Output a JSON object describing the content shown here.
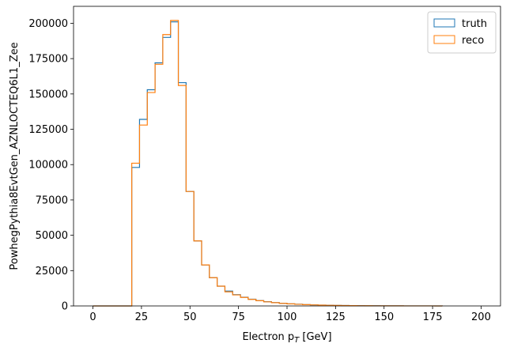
{
  "chart_data": {
    "type": "histogram",
    "xlabel": "Electron p",
    "xlabel_sub": "T",
    "xlabel_unit": " [GeV]",
    "ylabel": "PowhegPythia8EvtGen_AZNLOCTEQ6L1_Zee",
    "xlim": [
      -10,
      210
    ],
    "ylim": [
      0,
      212000
    ],
    "x_ticks": [
      0,
      25,
      50,
      75,
      100,
      125,
      150,
      175,
      200
    ],
    "y_ticks": [
      0,
      25000,
      50000,
      75000,
      100000,
      125000,
      150000,
      175000,
      200000
    ],
    "legend_position": "top-right",
    "grid": false,
    "bins": [
      0,
      4,
      8,
      12,
      16,
      20,
      24,
      28,
      32,
      36,
      40,
      44,
      48,
      52,
      56,
      60,
      64,
      68,
      72,
      76,
      80,
      84,
      88,
      92,
      96,
      100,
      104,
      108,
      112,
      116,
      120,
      124,
      128,
      132,
      136,
      140,
      144,
      148,
      152,
      156,
      160,
      164,
      168,
      172,
      176,
      180
    ],
    "series": [
      {
        "name": "truth",
        "color": "#1f77b4",
        "values": [
          0,
          0,
          0,
          0,
          0,
          98000,
          132000,
          153000,
          172000,
          190000,
          201000,
          158000,
          81000,
          46000,
          29000,
          20000,
          14000,
          10500,
          8000,
          6200,
          4800,
          3800,
          3000,
          2400,
          1900,
          1500,
          1200,
          950,
          750,
          600,
          480,
          380,
          300,
          240,
          190,
          150,
          120,
          95,
          75,
          60,
          48,
          38,
          30,
          24,
          19
        ]
      },
      {
        "name": "reco",
        "color": "#ff7f0e",
        "values": [
          0,
          0,
          0,
          0,
          0,
          101000,
          128000,
          151000,
          171000,
          192000,
          202000,
          156000,
          81000,
          46000,
          29000,
          20000,
          14000,
          10000,
          7800,
          6000,
          4600,
          3700,
          2900,
          2300,
          1800,
          1450,
          1150,
          920,
          730,
          580,
          460,
          370,
          290,
          230,
          180,
          145,
          115,
          90,
          72,
          58,
          46,
          37,
          29,
          23,
          18
        ]
      }
    ]
  }
}
